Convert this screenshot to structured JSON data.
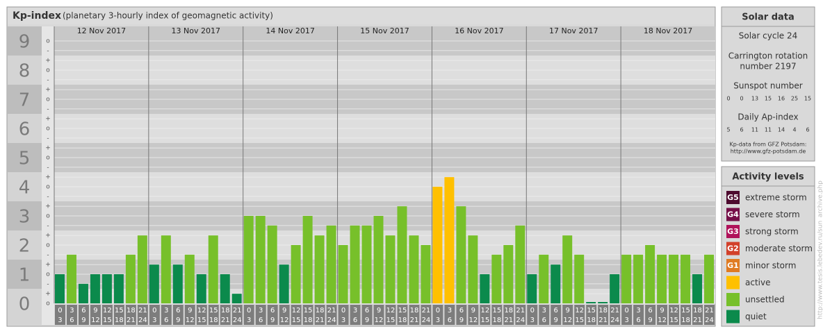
{
  "chart_data": {
    "type": "bar",
    "title": "Kp-index",
    "subtitle": "(planetary 3-hourly index of geomagnetic activity)",
    "ylim": [
      0,
      9.5
    ],
    "yticks": [
      0,
      1,
      2,
      3,
      4,
      5,
      6,
      7,
      8,
      9
    ],
    "minor_yticks": [
      {
        "value": 0,
        "label": "o"
      },
      {
        "value": 0.33,
        "label": "+"
      },
      {
        "value": 0.67,
        "label": "-"
      },
      {
        "value": 1,
        "label": "o"
      },
      {
        "value": 1.33,
        "label": "+"
      },
      {
        "value": 1.67,
        "label": "-"
      },
      {
        "value": 2,
        "label": "o"
      },
      {
        "value": 2.33,
        "label": "+"
      },
      {
        "value": 2.67,
        "label": "-"
      },
      {
        "value": 3,
        "label": "o"
      },
      {
        "value": 3.33,
        "label": "+"
      },
      {
        "value": 3.67,
        "label": "-"
      },
      {
        "value": 4,
        "label": "o"
      },
      {
        "value": 4.33,
        "label": "+"
      },
      {
        "value": 4.67,
        "label": "-"
      },
      {
        "value": 5,
        "label": "o"
      },
      {
        "value": 5.33,
        "label": "+"
      },
      {
        "value": 5.67,
        "label": "-"
      },
      {
        "value": 6,
        "label": "o"
      },
      {
        "value": 6.33,
        "label": "+"
      },
      {
        "value": 6.67,
        "label": "-"
      },
      {
        "value": 7,
        "label": "o"
      },
      {
        "value": 7.33,
        "label": "+"
      },
      {
        "value": 7.67,
        "label": "-"
      },
      {
        "value": 8,
        "label": "o"
      },
      {
        "value": 8.33,
        "label": "+"
      },
      {
        "value": 8.67,
        "label": "-"
      },
      {
        "value": 9,
        "label": "o"
      }
    ],
    "time_slots": [
      {
        "from": 0,
        "to": 3
      },
      {
        "from": 3,
        "to": 6
      },
      {
        "from": 6,
        "to": 9
      },
      {
        "from": 9,
        "to": 12
      },
      {
        "from": 12,
        "to": 15
      },
      {
        "from": 15,
        "to": 18
      },
      {
        "from": 18,
        "to": 21
      },
      {
        "from": 21,
        "to": 24
      }
    ],
    "days": [
      {
        "date": "12 Nov 2017",
        "values": [
          1,
          1.67,
          0.67,
          1,
          1,
          1,
          1.67,
          2.33
        ],
        "colors": [
          "#0b8a4c",
          "#77c02a",
          "#0b8a4c",
          "#0b8a4c",
          "#0b8a4c",
          "#0b8a4c",
          "#77c02a",
          "#77c02a"
        ]
      },
      {
        "date": "13 Nov 2017",
        "values": [
          1.33,
          2.33,
          1.33,
          1.67,
          1,
          2.33,
          1,
          0.33
        ],
        "colors": [
          "#0b8a4c",
          "#77c02a",
          "#0b8a4c",
          "#77c02a",
          "#0b8a4c",
          "#77c02a",
          "#0b8a4c",
          "#0b8a4c"
        ]
      },
      {
        "date": "14 Nov 2017",
        "values": [
          3,
          3,
          2.67,
          1.33,
          2,
          3,
          2.33,
          2.67
        ],
        "colors": [
          "#77c02a",
          "#77c02a",
          "#77c02a",
          "#0b8a4c",
          "#77c02a",
          "#77c02a",
          "#77c02a",
          "#77c02a"
        ]
      },
      {
        "date": "15 Nov 2017",
        "values": [
          2,
          2.67,
          2.67,
          3,
          2.33,
          3.33,
          2.33,
          2
        ],
        "colors": [
          "#77c02a",
          "#77c02a",
          "#77c02a",
          "#77c02a",
          "#77c02a",
          "#77c02a",
          "#77c02a",
          "#77c02a"
        ]
      },
      {
        "date": "16 Nov 2017",
        "values": [
          4,
          4.33,
          3.33,
          2.33,
          1,
          1.67,
          2,
          2.67
        ],
        "colors": [
          "#ffc000",
          "#ffc000",
          "#77c02a",
          "#77c02a",
          "#0b8a4c",
          "#77c02a",
          "#77c02a",
          "#77c02a"
        ]
      },
      {
        "date": "17 Nov 2017",
        "values": [
          1,
          1.67,
          1.33,
          2.33,
          1.67,
          0,
          0,
          1
        ],
        "colors": [
          "#0b8a4c",
          "#77c02a",
          "#0b8a4c",
          "#77c02a",
          "#77c02a",
          "#0b8a4c",
          "#0b8a4c",
          "#0b8a4c"
        ]
      },
      {
        "date": "18 Nov 2017",
        "values": [
          1.67,
          1.67,
          2,
          1.67,
          1.67,
          1.67,
          1,
          1.67
        ],
        "colors": [
          "#77c02a",
          "#77c02a",
          "#77c02a",
          "#77c02a",
          "#77c02a",
          "#77c02a",
          "#0b8a4c",
          "#77c02a"
        ]
      }
    ]
  },
  "solar_data": {
    "title": "Solar data",
    "solar_cycle": "Solar cycle 24",
    "carrington": [
      "Carrington rotation",
      "number 2197"
    ],
    "sunspot_label": "Sunspot number",
    "sunspot_values": [
      0,
      0,
      13,
      15,
      16,
      25,
      15
    ],
    "ap_label": "Daily Ap-index",
    "ap_values": [
      5,
      6,
      11,
      11,
      14,
      4,
      6
    ],
    "source": [
      "Kp-data from GFZ Potsdam:",
      "http://www.gfz-potsdam.de"
    ]
  },
  "activity_levels": {
    "title": "Activity levels",
    "items": [
      {
        "badge": "G5",
        "label": "extreme storm",
        "color": "#4d0a2e"
      },
      {
        "badge": "G4",
        "label": "severe storm",
        "color": "#750e47"
      },
      {
        "badge": "G3",
        "label": "strong storm",
        "color": "#b0125a"
      },
      {
        "badge": "G2",
        "label": "moderate storm",
        "color": "#d2402a"
      },
      {
        "badge": "G1",
        "label": "minor storm",
        "color": "#e07b22"
      },
      {
        "badge": null,
        "label": "active",
        "color": "#ffc000"
      },
      {
        "badge": null,
        "label": "unsettled",
        "color": "#77c02a"
      },
      {
        "badge": null,
        "label": "quiet",
        "color": "#0b8a4c"
      }
    ]
  },
  "credit": "http://www.tesis.lebedev.ru/sun_archive.php"
}
